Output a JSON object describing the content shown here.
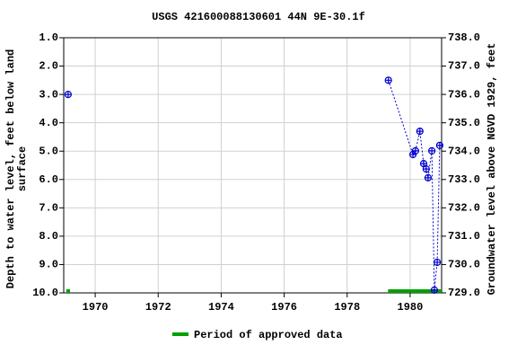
{
  "chart_data": {
    "type": "scatter",
    "title": "USGS 421600088130601 44N 9E-30.1f",
    "y_label_lines": [
      "Depth to water level, feet below land",
      "surface"
    ],
    "y2_label": "Groundwater level above NGVD 1929, feet",
    "x": [
      1969.14,
      1979.31,
      1980.09,
      1980.17,
      1980.31,
      1980.43,
      1980.51,
      1980.57,
      1980.69,
      1980.77,
      1980.86,
      1980.94
    ],
    "series": [
      {
        "color": "#0000cc",
        "values": [
          3.0,
          2.5,
          5.12,
          4.99,
          4.3,
          5.44,
          5.63,
          5.94,
          4.99,
          9.9,
          8.92,
          4.8
        ]
      }
    ],
    "xlim": [
      1969,
      1981
    ],
    "xticks": [
      1970,
      1972,
      1974,
      1976,
      1978,
      1980
    ],
    "ylim": [
      1,
      10
    ],
    "y_inverted": true,
    "yticks": [
      {
        "value": 1,
        "label": "1.0"
      },
      {
        "value": 2,
        "label": "2.0"
      },
      {
        "value": 3,
        "label": "3.0"
      },
      {
        "value": 4,
        "label": "4.0"
      },
      {
        "value": 5,
        "label": "5.0"
      },
      {
        "value": 6,
        "label": "6.0"
      },
      {
        "value": 7,
        "label": "7.0"
      },
      {
        "value": 8,
        "label": "8.0"
      },
      {
        "value": 9,
        "label": "9.0"
      },
      {
        "value": 10,
        "label": "10.0"
      }
    ],
    "y2lim": [
      729,
      738
    ],
    "y2ticks": [
      {
        "value": 729,
        "label": "729.0"
      },
      {
        "value": 730,
        "label": "730.0"
      },
      {
        "value": 731,
        "label": "731.0"
      },
      {
        "value": 732,
        "label": "732.0"
      },
      {
        "value": 733,
        "label": "733.0"
      },
      {
        "value": 734,
        "label": "734.0"
      },
      {
        "value": 735,
        "label": "735.0"
      },
      {
        "value": 736,
        "label": "736.0"
      },
      {
        "value": 737,
        "label": "737.0"
      },
      {
        "value": 738,
        "label": "738.0"
      }
    ],
    "grid": true,
    "approved_periods": {
      "name": "Period of approved data",
      "color": "#00a000",
      "ranges": [
        [
          1969.08,
          1969.2
        ],
        [
          1979.3,
          1981.0
        ]
      ]
    }
  }
}
